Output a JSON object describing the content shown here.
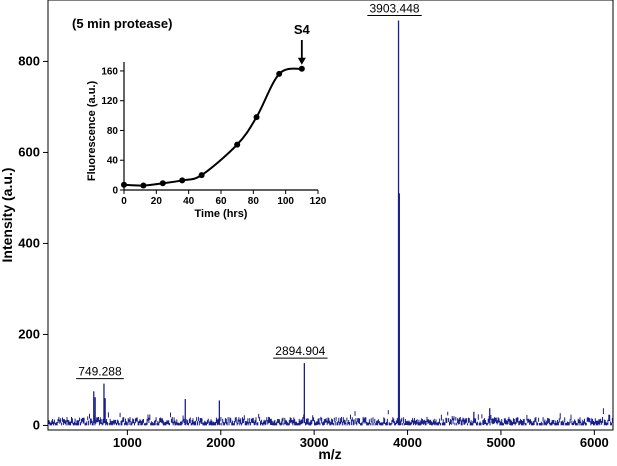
{
  "chart_data": [
    {
      "type": "line",
      "title": "",
      "annotation": "(5 min protease)",
      "xlabel": "m/z",
      "ylabel": "Intensity (a.u.)",
      "xlim": [
        150,
        6200
      ],
      "ylim": [
        -10,
        935
      ],
      "xticks": [
        1000,
        2000,
        3000,
        4000,
        5000,
        6000
      ],
      "yticks": [
        0,
        200,
        400,
        600,
        800
      ],
      "noise_level": 12,
      "grid": false,
      "color": "#1b1f8c",
      "peaks": [
        {
          "x": 640,
          "y": 75
        },
        {
          "x": 655,
          "y": 62
        },
        {
          "x": 749.288,
          "y": 92,
          "label": "749.288"
        },
        {
          "x": 762,
          "y": 60
        },
        {
          "x": 1620,
          "y": 58
        },
        {
          "x": 1985,
          "y": 55
        },
        {
          "x": 2894.904,
          "y": 137,
          "label": "2894.904"
        },
        {
          "x": 3903.448,
          "y": 890,
          "label": "3903.448"
        },
        {
          "x": 3912,
          "y": 510
        },
        {
          "x": 4710,
          "y": 30
        },
        {
          "x": 4880,
          "y": 38
        }
      ]
    },
    {
      "type": "scatter",
      "inset": true,
      "title": "",
      "xlabel": "Time (hrs)",
      "ylabel": "Fluorescence (a.u.)",
      "xlim": [
        0,
        120
      ],
      "ylim": [
        0,
        172
      ],
      "xticks": [
        0,
        20,
        40,
        60,
        80,
        100,
        120
      ],
      "yticks": [
        0,
        40,
        80,
        120,
        160
      ],
      "points": [
        {
          "x": 0,
          "y": 7
        },
        {
          "x": 12,
          "y": 6
        },
        {
          "x": 24,
          "y": 9
        },
        {
          "x": 36,
          "y": 13
        },
        {
          "x": 48,
          "y": 20
        },
        {
          "x": 70,
          "y": 61
        },
        {
          "x": 82,
          "y": 98
        },
        {
          "x": 96,
          "y": 156
        },
        {
          "x": 110,
          "y": 163
        }
      ],
      "arrow_label": "S4",
      "arrow_point_index": 8
    }
  ]
}
